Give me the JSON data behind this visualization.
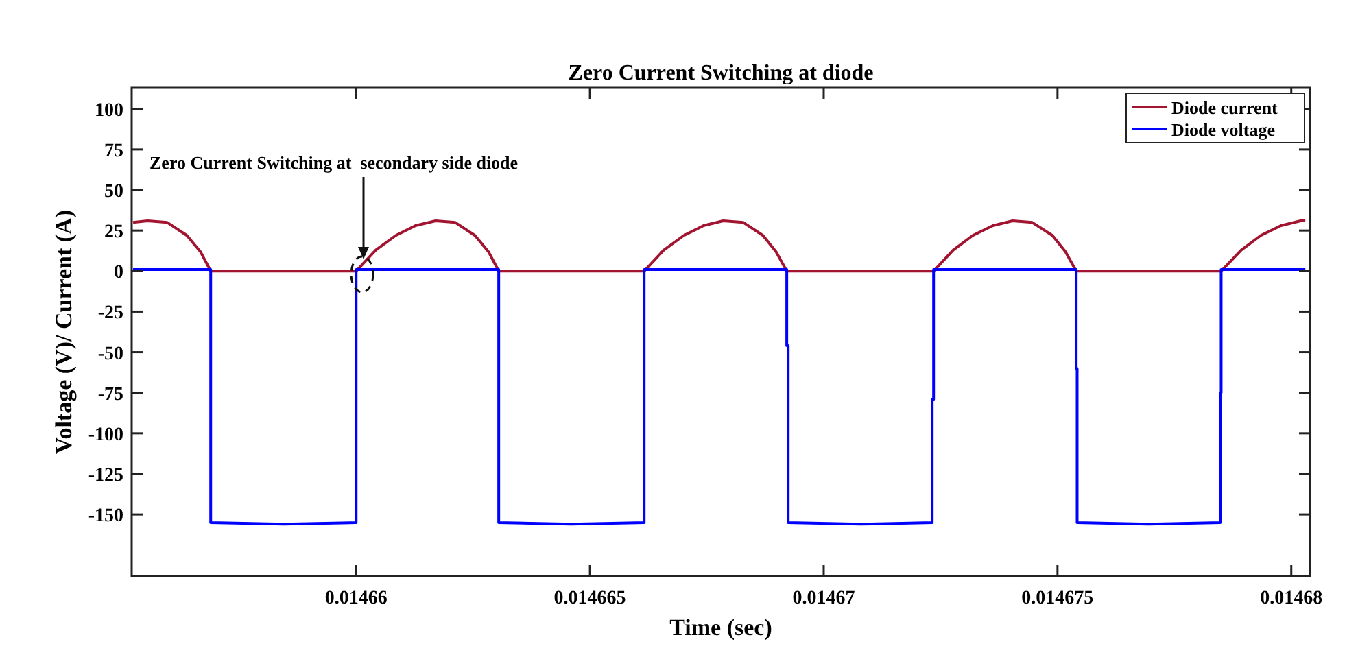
{
  "chart_data": {
    "type": "line",
    "title": "Zero Current Switching at diode",
    "xlabel": "Time (sec)",
    "ylabel": "Voltage (V)/ Current (A)",
    "xlim": [
      0.0146552,
      0.0146804
    ],
    "ylim": [
      -188,
      113
    ],
    "xticks": [
      0.01466,
      0.014665,
      0.01467,
      0.014675,
      0.01468
    ],
    "yticks": [
      100,
      75,
      50,
      25,
      0,
      -25,
      -50,
      -75,
      -100,
      -125,
      -150
    ],
    "grid": false,
    "legend": "top right",
    "marker": "none",
    "line_style": "solid",
    "annotations": [
      "Zero Current Switching at  secondary side diode"
    ],
    "series": [
      {
        "name": "Diode current",
        "color": "#a2142f",
        "x": [
          0.01465523,
          0.01465554,
          0.01465596,
          0.01465638,
          0.01465667,
          0.01465689,
          0.01466,
          0.01466042,
          0.01466085,
          0.01466127,
          0.0146617,
          0.01466212,
          0.01466254,
          0.01466283,
          0.01466305,
          0.01466616,
          0.01466658,
          0.01466701,
          0.01466743,
          0.01466785,
          0.01466828,
          0.0146687,
          0.01466898,
          0.01466921,
          0.01467235,
          0.01467277,
          0.01467319,
          0.01467362,
          0.01467404,
          0.01467446,
          0.01467489,
          0.01467517,
          0.0146754,
          0.0146785,
          0.01467893,
          0.01467935,
          0.01467978,
          0.0146802,
          0.0146803
        ],
        "values": [
          30,
          31,
          30,
          22,
          12,
          0,
          0,
          13,
          22,
          28,
          31,
          30,
          22,
          12,
          0,
          0,
          13,
          22,
          28,
          31,
          30,
          22,
          12,
          0,
          0,
          13,
          22,
          28,
          31,
          30,
          22,
          12,
          0,
          0,
          13,
          22,
          28,
          31,
          31
        ]
      },
      {
        "name": "Diode voltage",
        "color": "#0000ff",
        "x": [
          0.01465523,
          0.01465689,
          0.01465689,
          0.01465845,
          0.01466,
          0.01466,
          0.01466305,
          0.01466305,
          0.0146646,
          0.01466616,
          0.01466616,
          0.01466921,
          0.01466921,
          0.01466924,
          0.01466924,
          0.01467079,
          0.01467232,
          0.01467232,
          0.01467235,
          0.01467235,
          0.0146754,
          0.0146754,
          0.01467542,
          0.01467542,
          0.01467695,
          0.01467848,
          0.01467848,
          0.0146785,
          0.0146785,
          0.0146803
        ],
        "values": [
          1,
          1,
          -155,
          -156,
          -155,
          1,
          1,
          -155,
          -156,
          -155,
          1,
          1,
          -46,
          -46,
          -155,
          -156,
          -155,
          -79,
          -79,
          1,
          1,
          -60,
          -60,
          -155,
          -156,
          -155,
          -75,
          -75,
          1,
          1
        ]
      }
    ]
  }
}
